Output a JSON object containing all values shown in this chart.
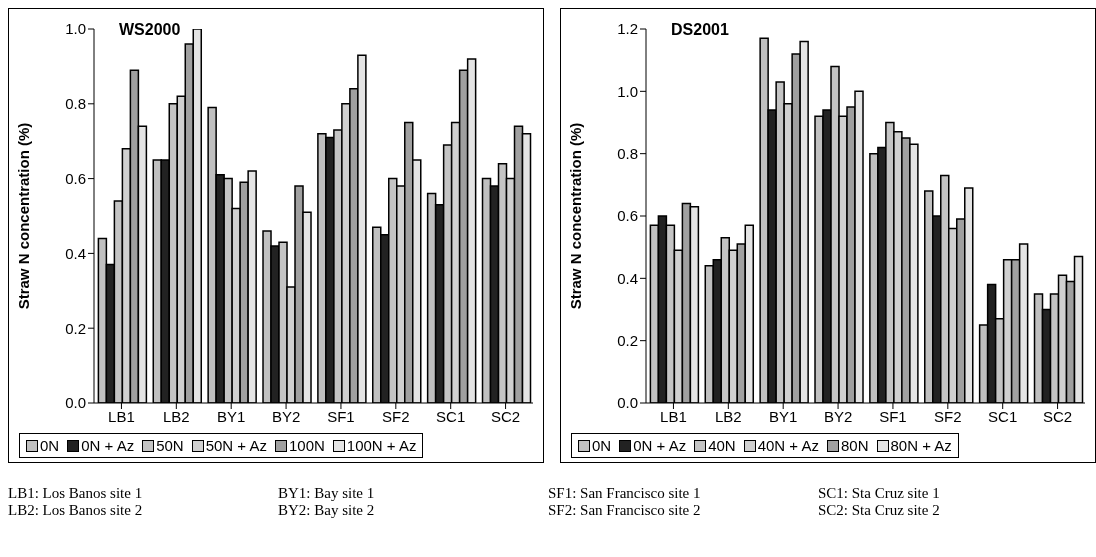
{
  "chart_data": [
    {
      "type": "bar",
      "title": "WS2000",
      "ylabel": "Straw N concentration (%)",
      "categories": [
        "LB1",
        "LB2",
        "BY1",
        "BY2",
        "SF1",
        "SF2",
        "SC1",
        "SC2"
      ],
      "ylim": [
        0,
        1.0
      ],
      "yticks": [
        {
          "value": 0,
          "label": "0.0"
        },
        {
          "value": 0.2,
          "label": "0.2"
        },
        {
          "value": 0.4,
          "label": "0.4"
        },
        {
          "value": 0.6,
          "label": "0.6"
        },
        {
          "value": 0.8,
          "label": "0.8"
        },
        {
          "value": 1.0,
          "label": "1.0"
        }
      ],
      "grid": false,
      "legend": "bottom",
      "series": [
        {
          "name": "0N",
          "color": "#c0c0c0",
          "values": [
            0.44,
            0.65,
            0.79,
            0.46,
            0.72,
            0.47,
            0.56,
            0.6
          ]
        },
        {
          "name": "0N + Az",
          "color": "#222222",
          "values": [
            0.37,
            0.65,
            0.61,
            0.42,
            0.71,
            0.45,
            0.53,
            0.58
          ]
        },
        {
          "name": "50N",
          "color": "#c4c4c4",
          "values": [
            0.54,
            0.8,
            0.6,
            0.43,
            0.73,
            0.6,
            0.69,
            0.64
          ]
        },
        {
          "name": "50N + Az",
          "color": "#d0d0d0",
          "values": [
            0.68,
            0.82,
            0.52,
            0.31,
            0.8,
            0.58,
            0.75,
            0.6
          ]
        },
        {
          "name": "100N",
          "color": "#a0a0a0",
          "values": [
            0.89,
            0.96,
            0.59,
            0.58,
            0.84,
            0.75,
            0.89,
            0.74
          ]
        },
        {
          "name": "100N + Az",
          "color": "#e4e4e4",
          "values": [
            0.74,
            1.0,
            0.62,
            0.51,
            0.93,
            0.65,
            0.92,
            0.72
          ]
        }
      ],
      "annotations": [
        "LB1: Los Banos site 1",
        "LB2: Los Banos site 2",
        "BY1: Bay site 1",
        "BY2: Bay site 2"
      ]
    },
    {
      "type": "bar",
      "title": "DS2001",
      "ylabel": "Straw N concentration (%)",
      "categories": [
        "LB1",
        "LB2",
        "BY1",
        "BY2",
        "SF1",
        "SF2",
        "SC1",
        "SC2"
      ],
      "ylim": [
        0,
        1.2
      ],
      "yticks": [
        {
          "value": 0,
          "label": "0.0"
        },
        {
          "value": 0.2,
          "label": "0.2"
        },
        {
          "value": 0.4,
          "label": "0.4"
        },
        {
          "value": 0.6,
          "label": "0.6"
        },
        {
          "value": 0.8,
          "label": "0.8"
        },
        {
          "value": 1.0,
          "label": "1.0"
        },
        {
          "value": 1.2,
          "label": "1.2"
        }
      ],
      "grid": false,
      "legend": "bottom",
      "series": [
        {
          "name": "0N",
          "color": "#c0c0c0",
          "values": [
            0.57,
            0.44,
            1.17,
            0.92,
            0.8,
            0.68,
            0.25,
            0.35
          ]
        },
        {
          "name": "0N + Az",
          "color": "#222222",
          "values": [
            0.6,
            0.46,
            0.94,
            0.94,
            0.82,
            0.6,
            0.38,
            0.3
          ]
        },
        {
          "name": "40N",
          "color": "#c4c4c4",
          "values": [
            0.57,
            0.53,
            1.03,
            1.08,
            0.9,
            0.73,
            0.27,
            0.35
          ]
        },
        {
          "name": "40N + Az",
          "color": "#d0d0d0",
          "values": [
            0.49,
            0.49,
            0.96,
            0.92,
            0.87,
            0.56,
            0.46,
            0.41
          ]
        },
        {
          "name": "80N",
          "color": "#a0a0a0",
          "values": [
            0.64,
            0.51,
            1.12,
            0.95,
            0.85,
            0.59,
            0.46,
            0.39
          ]
        },
        {
          "name": "80N + Az",
          "color": "#e4e4e4",
          "values": [
            0.63,
            0.57,
            1.16,
            1.0,
            0.83,
            0.69,
            0.51,
            0.47
          ]
        }
      ],
      "annotations": [
        "SF1: San Francisco site 1",
        "SF2: San Francisco site 2",
        "SC1: Sta Cruz site 1",
        "SC2: Sta Cruz site 2"
      ]
    }
  ]
}
